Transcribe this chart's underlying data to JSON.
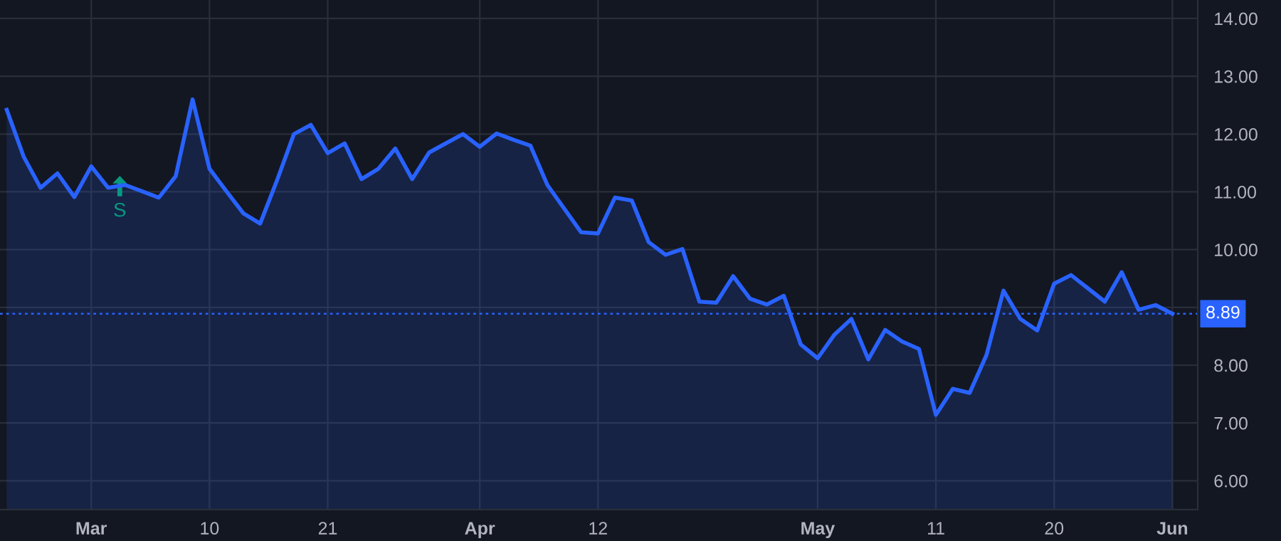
{
  "chart_data": {
    "type": "area",
    "categories": [
      null,
      null,
      null,
      null,
      null,
      "Mar",
      null,
      null,
      null,
      null,
      null,
      null,
      "10",
      null,
      null,
      null,
      null,
      null,
      null,
      "21",
      null,
      null,
      null,
      null,
      null,
      null,
      null,
      null,
      "Apr",
      null,
      null,
      null,
      null,
      null,
      null,
      "12",
      null,
      null,
      null,
      null,
      null,
      null,
      null,
      null,
      null,
      null,
      null,
      null,
      "May",
      null,
      null,
      null,
      null,
      null,
      null,
      "11",
      null,
      null,
      null,
      null,
      null,
      null,
      "20",
      null,
      null,
      null,
      null,
      null,
      null,
      "Jun"
    ],
    "series": [
      {
        "color": "#2962ff",
        "values": [
          12.42,
          11.61,
          11.07,
          11.32,
          10.91,
          11.44,
          11.07,
          11.12,
          11.01,
          10.9,
          11.27,
          12.6,
          11.4,
          11.01,
          10.63,
          10.45,
          11.2,
          12.0,
          12.16,
          11.67,
          11.84,
          11.22,
          11.4,
          11.75,
          11.22,
          11.68,
          11.84,
          12.0,
          11.78,
          12.01,
          11.9,
          11.8,
          11.12,
          10.71,
          10.3,
          10.28,
          10.9,
          10.85,
          10.13,
          9.91,
          10.01,
          9.1,
          9.08,
          9.54,
          9.15,
          9.05,
          9.2,
          8.36,
          8.12,
          8.53,
          8.8,
          8.1,
          8.61,
          8.41,
          8.28,
          7.14,
          7.59,
          7.52,
          8.18,
          9.29,
          8.8,
          8.6,
          9.41,
          9.56,
          9.33,
          9.1,
          9.61,
          8.96,
          9.04,
          8.89
        ]
      }
    ],
    "ylim": [
      5.5,
      14.32
    ],
    "yticks": [
      {
        "value": 6,
        "label": "6.00"
      },
      {
        "value": 7,
        "label": "7.00"
      },
      {
        "value": 8,
        "label": "8.00"
      },
      {
        "value": 9,
        "label": null
      },
      {
        "value": 10,
        "label": "10.00"
      },
      {
        "value": 11,
        "label": "11.00"
      },
      {
        "value": 12,
        "label": "12.00"
      },
      {
        "value": 13,
        "label": "13.00"
      },
      {
        "value": 14,
        "label": "14.00"
      }
    ],
    "grid": true,
    "ref_lines": [
      {
        "axis": "y",
        "value": 8.89,
        "label": "8.89",
        "color": "#2962ff",
        "line_style": "dotted"
      }
    ],
    "annotations": [
      "S"
    ],
    "legend": false
  }
}
